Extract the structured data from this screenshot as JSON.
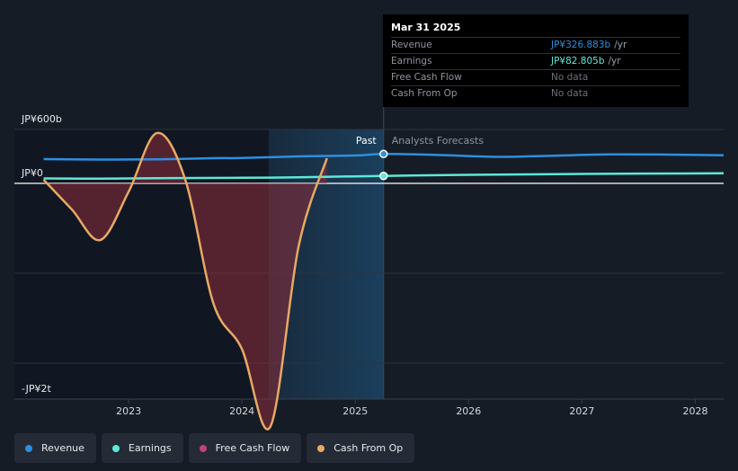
{
  "chart_data": {
    "type": "line",
    "currency": "JPY",
    "ylim": [
      -2000,
      600
    ],
    "y_ticks": [
      {
        "value": 600,
        "label": "JP¥600b"
      },
      {
        "value": 0,
        "label": "JP¥0"
      },
      {
        "value": -2000,
        "label": "-JP¥2t"
      }
    ],
    "x_ticks": [
      {
        "value": 2023,
        "label": "2023"
      },
      {
        "value": 2024,
        "label": "2024"
      },
      {
        "value": 2025,
        "label": "2025"
      },
      {
        "value": 2026,
        "label": "2026"
      },
      {
        "value": 2027,
        "label": "2027"
      },
      {
        "value": 2028,
        "label": "2028"
      }
    ],
    "past_label": "Past",
    "forecast_label": "Analysts Forecasts",
    "past_end": 2025.25,
    "series": [
      {
        "name": "Revenue",
        "color": "#2d8fe0",
        "values": [
          [
            2022.25,
            270
          ],
          [
            2022.75,
            265
          ],
          [
            2023.25,
            268
          ],
          [
            2023.75,
            280
          ],
          [
            2024.0,
            282
          ],
          [
            2024.5,
            300
          ],
          [
            2025.0,
            310
          ],
          [
            2025.25,
            326.9
          ],
          [
            2025.75,
            315
          ],
          [
            2026.25,
            295
          ],
          [
            2026.75,
            308
          ],
          [
            2027.25,
            322
          ],
          [
            2027.75,
            320
          ],
          [
            2028.25,
            312
          ]
        ]
      },
      {
        "name": "Earnings",
        "color": "#5ee8d8",
        "values": [
          [
            2022.25,
            55
          ],
          [
            2022.75,
            52
          ],
          [
            2023.25,
            58
          ],
          [
            2024.0,
            62
          ],
          [
            2024.5,
            68
          ],
          [
            2025.25,
            82.8
          ],
          [
            2026.0,
            95
          ],
          [
            2027.0,
            105
          ],
          [
            2028.25,
            112
          ]
        ]
      },
      {
        "name": "Free Cash Flow",
        "color": "#c2407f",
        "values": []
      },
      {
        "name": "Cash From Op",
        "color": "#e8a866",
        "values": [
          [
            2022.25,
            40
          ],
          [
            2022.5,
            -250
          ],
          [
            2022.75,
            -540
          ],
          [
            2023.0,
            -80
          ],
          [
            2023.25,
            560
          ],
          [
            2023.5,
            40
          ],
          [
            2023.75,
            -1150
          ],
          [
            2024.0,
            -1580
          ],
          [
            2024.25,
            -2320
          ],
          [
            2024.5,
            -600
          ],
          [
            2024.75,
            280
          ]
        ]
      }
    ],
    "highlight": {
      "date": "Mar 31 2025",
      "x": 2025.25,
      "rows": [
        {
          "label": "Revenue",
          "value": "JP¥326.883b",
          "unit": "/yr",
          "color": "#2d8fe0"
        },
        {
          "label": "Earnings",
          "value": "JP¥82.805b",
          "unit": "/yr",
          "color": "#5ee8d8"
        },
        {
          "label": "Free Cash Flow",
          "value": "No data",
          "unit": "",
          "color": "#6b7079"
        },
        {
          "label": "Cash From Op",
          "value": "No data",
          "unit": "",
          "color": "#6b7079"
        }
      ]
    }
  },
  "legend": [
    {
      "label": "Revenue",
      "color": "#2d8fe0"
    },
    {
      "label": "Earnings",
      "color": "#5ee8d8"
    },
    {
      "label": "Free Cash Flow",
      "color": "#c2407f"
    },
    {
      "label": "Cash From Op",
      "color": "#e8a866"
    }
  ]
}
